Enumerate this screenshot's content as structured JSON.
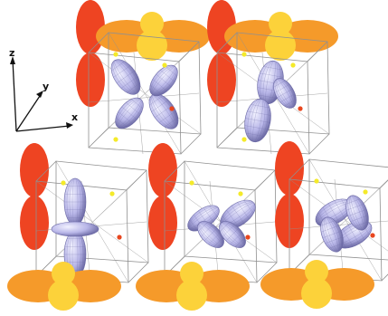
{
  "axes": {
    "z": "z",
    "y": "y",
    "x": "x"
  },
  "colors": {
    "red_lobe": "#ee4422",
    "orange_lobe": "#f59a2a",
    "yellow_lobe": "#fcd23a",
    "orbital_light": "#e6e6f8",
    "orbital_mid": "#b8b6e8",
    "orbital_dark": "#6c6aa6",
    "cube_line": "#909090",
    "yellow_dot": "#f4ea2a",
    "red_dot": "#e8461e"
  },
  "panels": [
    {
      "orbital": "xz"
    },
    {
      "orbital": "z2-tilted"
    },
    {
      "orbital": "z2"
    },
    {
      "orbital": "xy"
    },
    {
      "orbital": "x2-y2"
    }
  ]
}
